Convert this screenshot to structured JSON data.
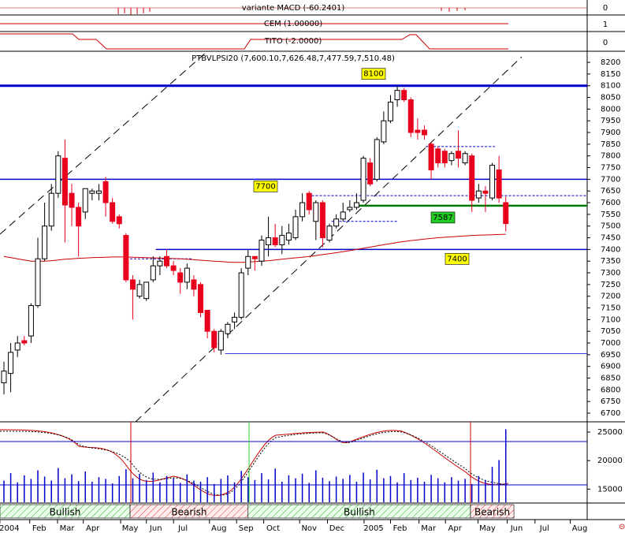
{
  "chart_data": {
    "type": "candlestick",
    "title": "PTBVLPSI20 (7,600.10,7,626.48,7,477.59,7,510.48)",
    "panels": [
      {
        "title": "variante MACD (-60.2401)",
        "ticks": [
          "0"
        ]
      },
      {
        "title": "CEM (1.00000)",
        "ticks": [
          "1"
        ]
      },
      {
        "title": "TITO (-2.0000)",
        "ticks": [
          "0"
        ]
      }
    ],
    "open": [
      6830,
      6870,
      6970,
      7010,
      7030,
      7160,
      7360,
      7500,
      7640,
      7790,
      7640,
      7580,
      7560,
      7640,
      7640,
      7690,
      7600,
      7540,
      7460,
      7270,
      7200,
      7190,
      7270,
      7330,
      7370,
      7330,
      7300,
      7260,
      7270,
      7250,
      7140,
      7050,
      6970,
      7040,
      7090,
      7110,
      7320,
      7370,
      7350,
      7420,
      7450,
      7420,
      7440,
      7450,
      7540,
      7640,
      7520,
      7600,
      7440,
      7500,
      7530,
      7570,
      7580,
      7610,
      7770,
      7700,
      7860,
      7950,
      8040,
      8080,
      8040,
      7910,
      7910,
      7850,
      7830,
      7820,
      7780,
      7820,
      7770,
      7800,
      7620,
      7650,
      7620,
      7740,
      7600.1
    ],
    "high": [
      6920,
      7000,
      7030,
      7030,
      7170,
      7450,
      7600,
      7680,
      7820,
      7870,
      7680,
      7600,
      7660,
      7660,
      7680,
      7710,
      7620,
      7550,
      7470,
      7290,
      7270,
      7260,
      7370,
      7370,
      7400,
      7350,
      7320,
      7340,
      7290,
      7260,
      7140,
      7060,
      7060,
      7090,
      7130,
      7320,
      7400,
      7370,
      7460,
      7540,
      7510,
      7500,
      7510,
      7570,
      7640,
      7650,
      7610,
      7610,
      7510,
      7550,
      7600,
      7610,
      7640,
      7800,
      7790,
      7880,
      7990,
      8060,
      8100,
      8090,
      8050,
      7960,
      7930,
      7860,
      7840,
      7830,
      7820,
      7910,
      7820,
      7810,
      7680,
      7670,
      7770,
      7800,
      7626.48
    ],
    "low": [
      6780,
      6790,
      6940,
      6990,
      7000,
      7150,
      7350,
      7480,
      7620,
      7430,
      7500,
      7370,
      7530,
      7610,
      7610,
      7540,
      7510,
      7490,
      7260,
      7100,
      7190,
      7180,
      7260,
      7290,
      7320,
      7290,
      7210,
      7230,
      7200,
      7110,
      7020,
      6960,
      6950,
      7020,
      7060,
      7100,
      7290,
      7310,
      7330,
      7370,
      7410,
      7380,
      7420,
      7440,
      7520,
      7550,
      7440,
      7410,
      7430,
      7490,
      7520,
      7560,
      7570,
      7600,
      7670,
      7690,
      7850,
      7940,
      8010,
      8030,
      7880,
      7870,
      7870,
      7700,
      7750,
      7750,
      7760,
      7750,
      7760,
      7560,
      7600,
      7560,
      7610,
      7600,
      7477.59
    ],
    "close": [
      6880,
      6960,
      7000,
      7000,
      7160,
      7360,
      7500,
      7640,
      7800,
      7590,
      7580,
      7500,
      7660,
      7650,
      7650,
      7600,
      7520,
      7510,
      7270,
      7230,
      7250,
      7260,
      7330,
      7350,
      7330,
      7310,
      7260,
      7320,
      7230,
      7130,
      7050,
      6980,
      7050,
      7080,
      7110,
      7300,
      7370,
      7360,
      7440,
      7450,
      7420,
      7460,
      7470,
      7540,
      7600,
      7570,
      7600,
      7450,
      7500,
      7530,
      7560,
      7580,
      7600,
      7790,
      7680,
      7870,
      7950,
      8030,
      8080,
      8040,
      7900,
      7900,
      7890,
      7740,
      7770,
      7770,
      7810,
      7790,
      7810,
      7610,
      7650,
      7640,
      7760,
      7620,
      7510.48
    ],
    "moving_average": [
      7370,
      7365,
      7360,
      7355,
      7350,
      7350,
      7350,
      7352,
      7355,
      7358,
      7360,
      7362,
      7363,
      7365,
      7366,
      7367,
      7368,
      7368,
      7368,
      7367,
      7366,
      7365,
      7364,
      7363,
      7362,
      7361,
      7360,
      7358,
      7356,
      7354,
      7352,
      7350,
      7348,
      7346,
      7345,
      7345,
      7346,
      7348,
      7350,
      7352,
      7355,
      7358,
      7361,
      7364,
      7367,
      7370,
      7374,
      7378,
      7382,
      7386,
      7390,
      7395,
      7400,
      7405,
      7410,
      7415,
      7420,
      7425,
      7430,
      7434,
      7438,
      7441,
      7444,
      7447,
      7450,
      7452,
      7454,
      7456,
      7458,
      7460,
      7461,
      7462,
      7463,
      7464,
      7465
    ],
    "up_color": "#ffffff",
    "down_color": "#e8001c",
    "ma_color": "#cc0000",
    "ylim": [
      6663,
      8244
    ],
    "yticks": [
      6700,
      6750,
      6800,
      6850,
      6900,
      6950,
      7000,
      7050,
      7100,
      7150,
      7200,
      7250,
      7300,
      7350,
      7400,
      7450,
      7500,
      7550,
      7600,
      7650,
      7700,
      7750,
      7800,
      7850,
      7900,
      7950,
      8000,
      8050,
      8100,
      8150,
      8200
    ],
    "xlim": [
      -0.58,
      86
    ],
    "xticks": [
      {
        "value": 0.8,
        "label": "2004"
      },
      {
        "value": 5.2,
        "label": "Feb"
      },
      {
        "value": 9.3,
        "label": "Mar"
      },
      {
        "value": 13.1,
        "label": "Apr"
      },
      {
        "value": 18.6,
        "label": "May"
      },
      {
        "value": 22.4,
        "label": "Jun"
      },
      {
        "value": 26.4,
        "label": "Jul"
      },
      {
        "value": 31.7,
        "label": "Aug"
      },
      {
        "value": 35.7,
        "label": "Sep"
      },
      {
        "value": 39.7,
        "label": "Oct"
      },
      {
        "value": 45,
        "label": "Nov"
      },
      {
        "value": 49.1,
        "label": "Dec"
      },
      {
        "value": 54.5,
        "label": "2005"
      },
      {
        "value": 58.4,
        "label": "Feb"
      },
      {
        "value": 62.6,
        "label": "Mar"
      },
      {
        "value": 66.5,
        "label": "Apr"
      },
      {
        "value": 71.3,
        "label": "May"
      },
      {
        "value": 75.6,
        "label": "Jun"
      },
      {
        "value": 79.7,
        "label": "Jul"
      },
      {
        "value": 84.9,
        "label": "Aug"
      }
    ],
    "levels": [
      {
        "value": 8100,
        "from": -0.58,
        "color": "#0000cc",
        "label": "8100"
      },
      {
        "value": 7700,
        "from": -0.58,
        "color": "#0000cc",
        "label": "7700"
      },
      {
        "value": 7587,
        "from": 52.3,
        "color": "#007700",
        "label": "7587"
      },
      {
        "value": 7400,
        "from": 22.4,
        "color": "#0000cc",
        "label": "7400"
      },
      {
        "value": 6955,
        "from": 32.6,
        "color": "#0000cc"
      }
    ],
    "dashed_levels": [
      {
        "value": 7630,
        "from": 44.8,
        "to": 86
      },
      {
        "value": 7840,
        "from": 62.2,
        "to": 72.4
      },
      {
        "value": 7520,
        "from": 48.3,
        "to": 58.1
      },
      {
        "value": 7360,
        "from": 18.6,
        "to": 27.9
      }
    ],
    "volume": {
      "ylim": [
        12700,
        26800
      ],
      "yticks": [
        15000,
        20000,
        25000
      ],
      "color": "#0000cc",
      "values": [
        16500,
        17800,
        16200,
        17400,
        16800,
        18300,
        17200,
        16500,
        18700,
        16900,
        17600,
        16400,
        18100,
        16300,
        17100,
        16800,
        16000,
        17300,
        18500,
        16900,
        17700,
        16600,
        17900,
        16200,
        17300,
        16900,
        16100,
        17600,
        16500,
        16300,
        17100,
        15900,
        16800,
        17400,
        16200,
        18200,
        17100,
        16600,
        17800,
        16700,
        18600,
        16300,
        17400,
        16900,
        17700,
        16100,
        18300,
        17000,
        16400,
        17200,
        16800,
        17500,
        16300,
        17900,
        16700,
        18400,
        16900,
        17300,
        16200,
        17800,
        16600,
        17000,
        16300,
        17500,
        16900,
        16200,
        17100,
        16500,
        16800,
        15900,
        17300,
        16600,
        18900,
        20100,
        25500
      ]
    },
    "signals": [
      {
        "label": "Bullish",
        "from": -0.58,
        "to": 18.6,
        "kind": "bull"
      },
      {
        "label": "Bearish",
        "from": 18.6,
        "to": 36.0,
        "kind": "bear"
      },
      {
        "label": "Bullish",
        "from": 36.0,
        "to": 68.8,
        "kind": "bull"
      },
      {
        "label": "Bearish",
        "from": 68.8,
        "to": 75.2,
        "kind": "bear"
      }
    ]
  }
}
